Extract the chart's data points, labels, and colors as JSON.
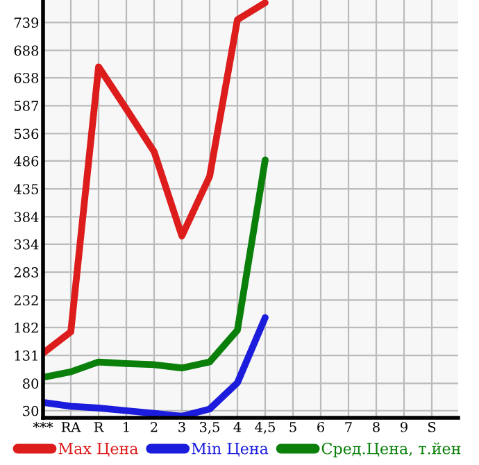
{
  "chart_data": {
    "type": "line",
    "categories": [
      "***",
      "RA",
      "R",
      "1",
      "2",
      "3",
      "3,5",
      "4",
      "4,5",
      "5",
      "6",
      "7",
      "8",
      "9",
      "S"
    ],
    "series": [
      {
        "name": "Max Цена",
        "color": "#dd1c1c",
        "values": [
          135,
          174,
          658,
          581,
          503,
          349,
          458,
          744,
          775,
          null,
          null,
          null,
          null,
          null,
          null
        ]
      },
      {
        "name": "Min Цена",
        "color": "#1c1cdd",
        "values": [
          45,
          38,
          35,
          30,
          25,
          20,
          33,
          81,
          200,
          null,
          null,
          null,
          null,
          null,
          null
        ]
      },
      {
        "name": "Сред.Цена, т.йен",
        "color": "#0a800a",
        "values": [
          91,
          101,
          119,
          116,
          114,
          108,
          119,
          177,
          488,
          null,
          null,
          null,
          null,
          null,
          null
        ]
      }
    ],
    "ylim": [
      17,
      780
    ],
    "yticks": [
      30,
      80,
      131,
      182,
      232,
      283,
      334,
      384,
      435,
      486,
      536,
      587,
      638,
      688,
      739
    ],
    "grid": true,
    "legend": "bottom",
    "marker": "none",
    "line_style": "solid"
  }
}
